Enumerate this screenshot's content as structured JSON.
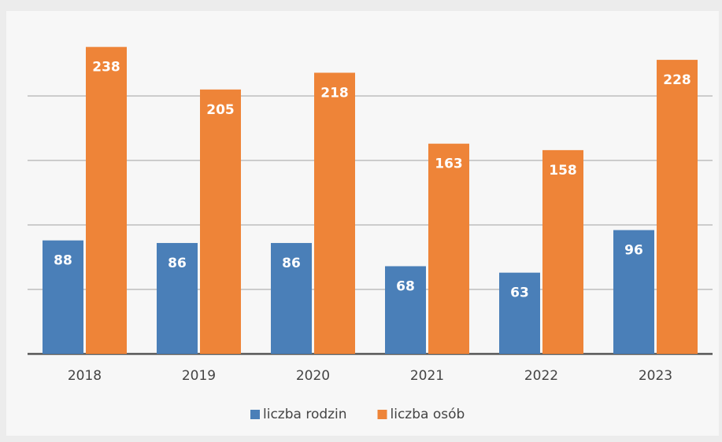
{
  "chart_data": {
    "type": "bar",
    "categories": [
      "2018",
      "2019",
      "2020",
      "2021",
      "2022",
      "2023"
    ],
    "series": [
      {
        "name": "liczba rodzin",
        "color": "#4a7fb8",
        "values": [
          88,
          86,
          86,
          68,
          63,
          96
        ]
      },
      {
        "name": "liczba osób",
        "color": "#ee8438",
        "values": [
          238,
          205,
          218,
          163,
          158,
          228
        ]
      }
    ],
    "ylim": [
      0,
      250
    ],
    "yticks": [
      0,
      50,
      100,
      150,
      200
    ],
    "grid": true,
    "legend": "bottom"
  }
}
